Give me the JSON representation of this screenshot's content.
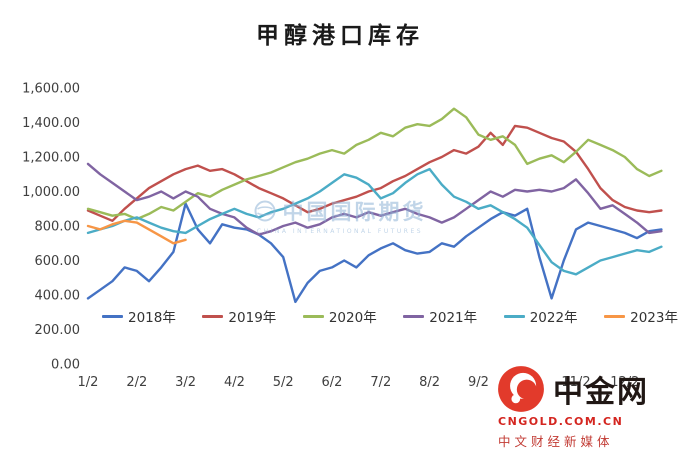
{
  "title": "甲醇港口库存",
  "watermark": {
    "text": "中国国际期货",
    "subtext": "CHINA INTERNATIONAL FUTURES"
  },
  "brand": {
    "name": "中金网",
    "domain": "CNGOLD.COM.CN",
    "tagline": "中文财经新媒体"
  },
  "chart_data": {
    "type": "line",
    "title": "甲醇港口库存",
    "ylim": [
      0,
      1600
    ],
    "grid": false,
    "legend_position": "bottom-inside",
    "points_per_month": 4,
    "x_labels": [
      "1/2",
      "2/2",
      "3/2",
      "4/2",
      "5/2",
      "6/2",
      "7/2",
      "8/2",
      "9/2",
      "10/2",
      "11/2",
      "12/2"
    ],
    "y_ticks": [
      {
        "value": 1600,
        "label": "1,600.00"
      },
      {
        "value": 1400,
        "label": "1,400.00"
      },
      {
        "value": 1200,
        "label": "1,200.00"
      },
      {
        "value": 1000,
        "label": "1,000.00"
      },
      {
        "value": 800,
        "label": "800.00"
      },
      {
        "value": 600,
        "label": "600.00"
      },
      {
        "value": 400,
        "label": "400.00"
      },
      {
        "value": 200,
        "label": "200.00"
      },
      {
        "value": 0,
        "label": "0.00"
      }
    ],
    "series": [
      {
        "name": "2018年",
        "color": "#4472C4",
        "values": [
          380,
          430,
          480,
          560,
          540,
          480,
          560,
          650,
          930,
          780,
          700,
          810,
          790,
          780,
          750,
          700,
          620,
          360,
          470,
          540,
          560,
          600,
          560,
          630,
          670,
          700,
          660,
          640,
          650,
          700,
          680,
          740,
          790,
          840,
          880,
          860,
          900,
          620,
          380,
          600,
          780,
          820,
          800,
          780,
          760,
          730,
          770,
          780
        ]
      },
      {
        "name": "2019年",
        "color": "#C0504D",
        "values": [
          890,
          860,
          830,
          900,
          960,
          1020,
          1060,
          1100,
          1130,
          1150,
          1120,
          1130,
          1100,
          1060,
          1020,
          990,
          960,
          920,
          880,
          900,
          930,
          950,
          970,
          1000,
          1020,
          1060,
          1090,
          1130,
          1170,
          1200,
          1240,
          1220,
          1260,
          1340,
          1270,
          1380,
          1370,
          1340,
          1310,
          1290,
          1230,
          1130,
          1020,
          950,
          910,
          890,
          880,
          890
        ]
      },
      {
        "name": "2020年",
        "color": "#9BBB59",
        "values": [
          900,
          880,
          860,
          870,
          840,
          870,
          910,
          890,
          940,
          990,
          970,
          1010,
          1040,
          1070,
          1090,
          1110,
          1140,
          1170,
          1190,
          1220,
          1240,
          1220,
          1270,
          1300,
          1340,
          1320,
          1370,
          1390,
          1380,
          1420,
          1480,
          1430,
          1330,
          1300,
          1320,
          1270,
          1160,
          1190,
          1210,
          1170,
          1230,
          1300,
          1270,
          1240,
          1200,
          1130,
          1090,
          1120
        ]
      },
      {
        "name": "2021年",
        "color": "#8064A2",
        "values": [
          1160,
          1100,
          1050,
          1000,
          950,
          970,
          1000,
          960,
          1000,
          970,
          900,
          870,
          850,
          790,
          750,
          770,
          800,
          820,
          790,
          810,
          850,
          870,
          850,
          880,
          860,
          880,
          900,
          870,
          850,
          820,
          850,
          900,
          950,
          1000,
          970,
          1010,
          1000,
          1010,
          1000,
          1020,
          1070,
          990,
          900,
          920,
          870,
          820,
          760,
          770
        ]
      },
      {
        "name": "2022年",
        "color": "#4BACC6",
        "values": [
          760,
          780,
          800,
          830,
          850,
          820,
          790,
          770,
          760,
          800,
          840,
          870,
          900,
          870,
          850,
          880,
          900,
          930,
          960,
          1000,
          1050,
          1100,
          1080,
          1040,
          960,
          990,
          1050,
          1100,
          1130,
          1040,
          970,
          940,
          900,
          920,
          880,
          840,
          790,
          690,
          590,
          540,
          520,
          560,
          600,
          620,
          640,
          660,
          650,
          680
        ]
      },
      {
        "name": "2023年",
        "color": "#F79646",
        "values": [
          800,
          780,
          810,
          830,
          820,
          780,
          740,
          700,
          720
        ]
      }
    ]
  }
}
